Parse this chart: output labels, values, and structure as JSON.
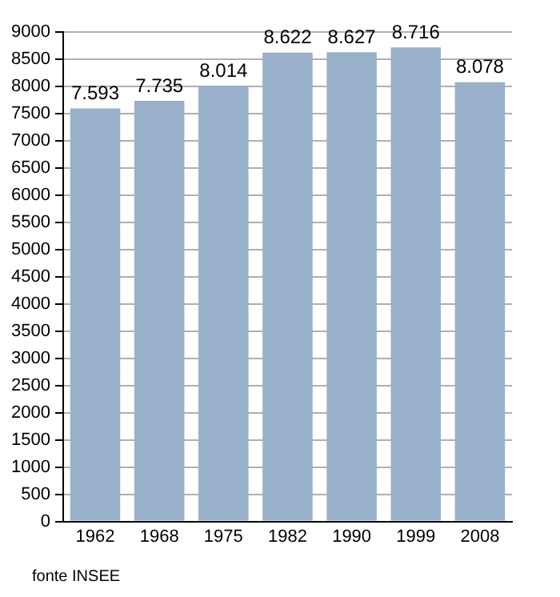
{
  "chart_data": {
    "type": "bar",
    "categories": [
      "1962",
      "1968",
      "1975",
      "1982",
      "1990",
      "1999",
      "2008"
    ],
    "values": [
      7593,
      7735,
      8014,
      8622,
      8627,
      8716,
      8078
    ],
    "value_labels": [
      "7.593",
      "7.735",
      "8.014",
      "8.622",
      "8.627",
      "8.716",
      "8.078"
    ],
    "color": "#98b0ca",
    "ylim": [
      0,
      9000
    ],
    "yticks": [
      0,
      500,
      1000,
      1500,
      2000,
      2500,
      3000,
      3500,
      4000,
      4500,
      5000,
      5500,
      6000,
      6500,
      7000,
      7500,
      8000,
      8500,
      9000
    ],
    "grid": "y",
    "annotations": [
      "fonte INSEE"
    ]
  }
}
